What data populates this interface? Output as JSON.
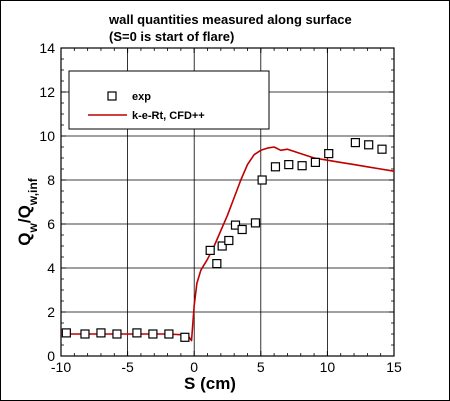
{
  "chart_data": {
    "type": "line",
    "title_lines": [
      "wall quantities measured along surface",
      "(S=0 is start of flare)"
    ],
    "xlabel": "S (cm)",
    "ylabel": "Q_w/Q_w,inf",
    "xlim": [
      -10,
      15
    ],
    "ylim": [
      0,
      14
    ],
    "x_ticks": [
      -10,
      -5,
      0,
      5,
      10,
      15
    ],
    "y_ticks": [
      0,
      2,
      4,
      6,
      8,
      10,
      12,
      14
    ],
    "x_tick_labels": [
      "-10",
      "-5",
      "0",
      "5",
      "10",
      "15"
    ],
    "y_tick_labels": [
      "0",
      "2",
      "4",
      "6",
      "8",
      "10",
      "12",
      "14"
    ],
    "grid": true,
    "legend_position": "top-left",
    "series": [
      {
        "name": "exp",
        "style": "square-markers",
        "color": "#000000",
        "x": [
          -9.6,
          -8.2,
          -7.0,
          -5.8,
          -4.3,
          -3.1,
          -1.9,
          -0.7,
          1.2,
          1.7,
          2.1,
          2.6,
          3.1,
          3.6,
          4.6,
          5.1,
          6.1,
          7.1,
          8.1,
          9.1,
          10.1,
          12.1,
          13.1,
          14.1
        ],
        "y": [
          1.05,
          1.0,
          1.05,
          1.0,
          1.05,
          1.0,
          1.0,
          0.85,
          4.8,
          4.2,
          5.0,
          5.25,
          5.95,
          5.75,
          6.05,
          8.0,
          8.6,
          8.7,
          8.65,
          8.8,
          9.2,
          9.7,
          9.6,
          9.4
        ]
      },
      {
        "name": "k-e-Rt, CFD++",
        "style": "line",
        "color": "#c00000",
        "x": [
          -10,
          -8,
          -6,
          -4,
          -2,
          -0.5,
          -0.2,
          0.0,
          0.2,
          0.5,
          1.0,
          1.5,
          2.0,
          2.5,
          3.0,
          3.5,
          4.0,
          4.5,
          5.0,
          5.5,
          6.0,
          6.5,
          7.0,
          8.0,
          9.0,
          10.0,
          11.0,
          12.0,
          13.0,
          14.0,
          15.0
        ],
        "y": [
          1.0,
          1.0,
          1.0,
          1.0,
          1.0,
          0.95,
          0.7,
          2.3,
          3.3,
          3.9,
          4.4,
          5.0,
          5.7,
          6.4,
          7.2,
          8.0,
          8.7,
          9.15,
          9.35,
          9.45,
          9.5,
          9.35,
          9.4,
          9.2,
          9.0,
          8.9,
          8.8,
          8.7,
          8.6,
          8.5,
          8.4
        ]
      }
    ]
  }
}
